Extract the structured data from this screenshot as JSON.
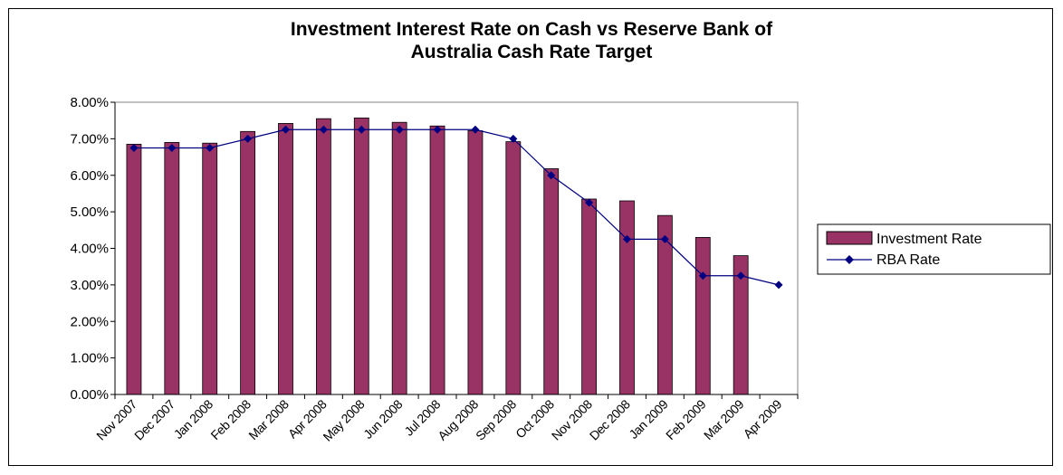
{
  "chart_data": {
    "type": "bar",
    "title": "Investment Interest Rate on Cash vs Reserve Bank of Australia Cash Rate Target",
    "title_lines": [
      "Investment Interest Rate on Cash vs Reserve Bank of",
      "Australia Cash Rate Target"
    ],
    "categories": [
      "Nov 2007",
      "Dec 2007",
      "Jan 2008",
      "Feb 2008",
      "Mar 2008",
      "Apr 2008",
      "May 2008",
      "Jun 2008",
      "Jul 2008",
      "Aug 2008",
      "Sep 2008",
      "Oct 2008",
      "Nov 2008",
      "Dec 2008",
      "Jan 2009",
      "Feb 2009",
      "Mar 2009",
      "Apr 2009"
    ],
    "series": [
      {
        "name": "Investment Rate",
        "type": "bar",
        "color": "#993366",
        "values": [
          6.85,
          6.9,
          6.88,
          7.2,
          7.42,
          7.55,
          7.57,
          7.45,
          7.35,
          7.22,
          6.92,
          6.18,
          5.35,
          5.3,
          4.9,
          4.3,
          3.8,
          null
        ]
      },
      {
        "name": "RBA Rate",
        "type": "line",
        "color": "#000080",
        "values": [
          6.75,
          6.75,
          6.75,
          7.0,
          7.25,
          7.25,
          7.25,
          7.25,
          7.25,
          7.25,
          7.0,
          6.0,
          5.25,
          4.25,
          4.25,
          3.25,
          3.25,
          3.0
        ]
      }
    ],
    "ylim": [
      0,
      8
    ],
    "yticks": [
      "0.00%",
      "1.00%",
      "2.00%",
      "3.00%",
      "4.00%",
      "5.00%",
      "6.00%",
      "7.00%",
      "8.00%"
    ],
    "xlabel": "",
    "ylabel": "",
    "grid": false,
    "legend_position": "right"
  }
}
